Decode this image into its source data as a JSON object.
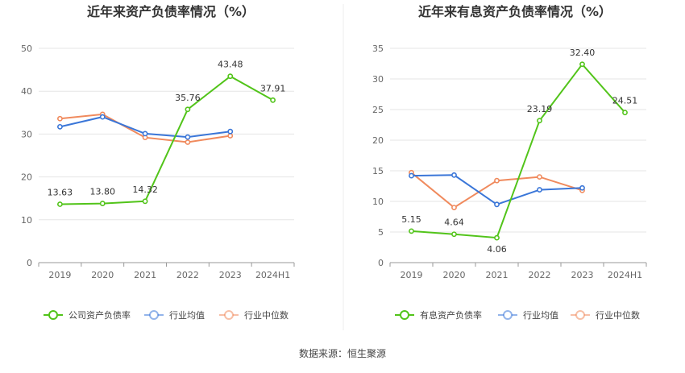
{
  "colors": {
    "company": "#52c41a",
    "industry_avg": "#3a76d8",
    "industry_median": "#f08a5d"
  },
  "source_text": "数据来源：恒生聚源",
  "chart_data": [
    {
      "type": "line",
      "title": "近年来资产负债率情况（%）",
      "categories": [
        "2019",
        "2020",
        "2021",
        "2022",
        "2023",
        "2024H1"
      ],
      "ylim": [
        0,
        50
      ],
      "yticks": [
        0,
        10,
        20,
        30,
        40,
        50
      ],
      "grid": true,
      "legend_position": "bottom",
      "series": [
        {
          "name": "公司资产负债率",
          "key": "company",
          "values": [
            13.63,
            13.8,
            14.32,
            35.76,
            43.48,
            37.91
          ],
          "labels": [
            "13.63",
            "13.80",
            "14.32",
            "35.76",
            "43.48",
            "37.91"
          ]
        },
        {
          "name": "行业均值",
          "key": "industry_avg",
          "values": [
            31.7,
            34.0,
            30.1,
            29.3,
            30.6,
            null
          ]
        },
        {
          "name": "行业中位数",
          "key": "industry_median",
          "values": [
            33.6,
            34.6,
            29.2,
            28.1,
            29.6,
            null
          ]
        }
      ]
    },
    {
      "type": "line",
      "title": "近年来有息资产负债率情况（%）",
      "categories": [
        "2019",
        "2020",
        "2021",
        "2022",
        "2023",
        "2024H1"
      ],
      "ylim": [
        0,
        35
      ],
      "yticks": [
        0,
        5,
        10,
        15,
        20,
        25,
        30,
        35
      ],
      "grid": true,
      "legend_position": "bottom",
      "series": [
        {
          "name": "有息资产负债率",
          "key": "company",
          "values": [
            5.15,
            4.64,
            4.06,
            23.19,
            32.4,
            24.51
          ],
          "labels": [
            "5.15",
            "4.64",
            "4.06",
            "23.19",
            "32.40",
            "24.51"
          ]
        },
        {
          "name": "行业均值",
          "key": "industry_avg",
          "values": [
            14.2,
            14.3,
            9.5,
            11.9,
            12.2,
            null
          ]
        },
        {
          "name": "行业中位数",
          "key": "industry_median",
          "values": [
            14.7,
            9.0,
            13.4,
            14.0,
            11.8,
            null
          ]
        }
      ]
    }
  ]
}
